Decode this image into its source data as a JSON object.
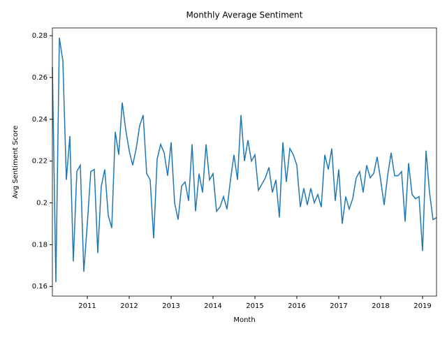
{
  "chart_data": {
    "type": "line",
    "title": "Monthly Average Sentiment",
    "x_label": "Month",
    "y_label": "Avg Sentiment Score",
    "color": "#1f77b4",
    "x": [
      "2010-03",
      "2010-04",
      "2010-05",
      "2010-06",
      "2010-07",
      "2010-08",
      "2010-09",
      "2010-10",
      "2010-11",
      "2010-12",
      "2011-01",
      "2011-02",
      "2011-03",
      "2011-04",
      "2011-05",
      "2011-06",
      "2011-07",
      "2011-08",
      "2011-09",
      "2011-10",
      "2011-11",
      "2011-12",
      "2012-01",
      "2012-02",
      "2012-03",
      "2012-04",
      "2012-05",
      "2012-06",
      "2012-07",
      "2012-08",
      "2012-09",
      "2012-10",
      "2012-11",
      "2012-12",
      "2013-01",
      "2013-02",
      "2013-03",
      "2013-04",
      "2013-05",
      "2013-06",
      "2013-07",
      "2013-08",
      "2013-09",
      "2013-10",
      "2013-11",
      "2013-12",
      "2014-01",
      "2014-02",
      "2014-03",
      "2014-04",
      "2014-05",
      "2014-06",
      "2014-07",
      "2014-08",
      "2014-09",
      "2014-10",
      "2014-11",
      "2014-12",
      "2015-01",
      "2015-02",
      "2015-03",
      "2015-04",
      "2015-05",
      "2015-06",
      "2015-07",
      "2015-08",
      "2015-09",
      "2015-10",
      "2015-11",
      "2015-12",
      "2016-01",
      "2016-02",
      "2016-03",
      "2016-04",
      "2016-05",
      "2016-06",
      "2016-07",
      "2016-08",
      "2016-09",
      "2016-10",
      "2016-11",
      "2016-12",
      "2017-01",
      "2017-02",
      "2017-03",
      "2017-04",
      "2017-05",
      "2017-06",
      "2017-07",
      "2017-08",
      "2017-09",
      "2017-10",
      "2017-11",
      "2017-12",
      "2018-01",
      "2018-02",
      "2018-03",
      "2018-04",
      "2018-05",
      "2018-06",
      "2018-07",
      "2018-08",
      "2018-09",
      "2018-10",
      "2018-11",
      "2018-12",
      "2019-01",
      "2019-02",
      "2019-03",
      "2019-04",
      "2019-05"
    ],
    "values": [
      0.265,
      0.162,
      0.279,
      0.268,
      0.211,
      0.232,
      0.172,
      0.215,
      0.218,
      0.167,
      0.19,
      0.215,
      0.216,
      0.176,
      0.208,
      0.216,
      0.194,
      0.188,
      0.234,
      0.223,
      0.248,
      0.235,
      0.225,
      0.218,
      0.226,
      0.237,
      0.242,
      0.214,
      0.211,
      0.183,
      0.221,
      0.228,
      0.224,
      0.213,
      0.229,
      0.2,
      0.192,
      0.208,
      0.21,
      0.201,
      0.228,
      0.196,
      0.214,
      0.205,
      0.228,
      0.211,
      0.214,
      0.196,
      0.198,
      0.203,
      0.197,
      0.211,
      0.223,
      0.211,
      0.242,
      0.22,
      0.23,
      0.22,
      0.223,
      0.206,
      0.209,
      0.212,
      0.217,
      0.205,
      0.211,
      0.193,
      0.229,
      0.21,
      0.226,
      0.223,
      0.218,
      0.198,
      0.207,
      0.199,
      0.207,
      0.2,
      0.204,
      0.198,
      0.223,
      0.216,
      0.226,
      0.201,
      0.216,
      0.19,
      0.203,
      0.197,
      0.202,
      0.212,
      0.215,
      0.205,
      0.218,
      0.212,
      0.214,
      0.222,
      0.211,
      0.199,
      0.213,
      0.224,
      0.213,
      0.213,
      0.215,
      0.191,
      0.219,
      0.204,
      0.202,
      0.203,
      0.177,
      0.225,
      0.205,
      0.192,
      0.193
    ],
    "xlim": [
      "2010-03",
      "2019-05"
    ],
    "xticks": [
      {
        "value": "2011-01",
        "label": "2011"
      },
      {
        "value": "2012-01",
        "label": "2012"
      },
      {
        "value": "2013-01",
        "label": "2013"
      },
      {
        "value": "2014-01",
        "label": "2014"
      },
      {
        "value": "2015-01",
        "label": "2015"
      },
      {
        "value": "2016-01",
        "label": "2016"
      },
      {
        "value": "2017-01",
        "label": "2017"
      },
      {
        "value": "2018-01",
        "label": "2018"
      },
      {
        "value": "2019-01",
        "label": "2019"
      }
    ],
    "ylim": [
      0.1554,
      0.2837
    ],
    "yticks": [
      0.16,
      0.18,
      0.2,
      0.22,
      0.24,
      0.26,
      0.28
    ],
    "grid": false
  }
}
